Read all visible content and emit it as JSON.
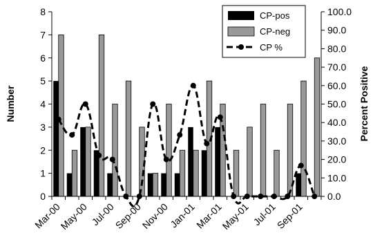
{
  "chart_data": {
    "type": "bar",
    "title": "",
    "ylabel": "Number",
    "y2label": "Percent Positive",
    "ylim": [
      0,
      8
    ],
    "y2lim": [
      0,
      100
    ],
    "yticks": [
      "0",
      "1",
      "2",
      "3",
      "4",
      "5",
      "6",
      "7",
      "8"
    ],
    "y2ticks": [
      "0.0",
      "10.0",
      "20.0",
      "30.0",
      "40.0",
      "50.0",
      "60.0",
      "70.0",
      "80.0",
      "90.0",
      "100.0"
    ],
    "x_tick_labels": [
      "Mar-00",
      "May-00",
      "Jul-00",
      "Sep-00",
      "Nov-00",
      "Jan-01",
      "Mar-01",
      "May-01",
      "Jul-01",
      "Sep-01"
    ],
    "months": [
      "Mar-00",
      "Apr-00",
      "May-00",
      "Jun-00",
      "Jul-00",
      "Aug-00",
      "Sep-00",
      "Oct-00",
      "Nov-00",
      "Dec-00",
      "Jan-01",
      "Feb-01",
      "Mar-01",
      "Apr-01",
      "May-01",
      "Jun-01",
      "Jul-01",
      "Aug-01",
      "Sep-01",
      "Oct-01"
    ],
    "legend_position": "top-right",
    "series": [
      {
        "name": "CP-pos",
        "kind": "bar",
        "axis": "left",
        "color": "#000000",
        "values": [
          5,
          1,
          3,
          2,
          1,
          0,
          0,
          1,
          1,
          1,
          3,
          2,
          3,
          0,
          0,
          0,
          0,
          0,
          1,
          0
        ]
      },
      {
        "name": "CP-neg",
        "kind": "bar",
        "axis": "left",
        "color": "#999999",
        "values": [
          7,
          2,
          3,
          7,
          4,
          5,
          3,
          1,
          4,
          2,
          2,
          5,
          4,
          2,
          3,
          4,
          2,
          4,
          5,
          6
        ]
      },
      {
        "name": "CP %",
        "kind": "line",
        "axis": "right",
        "color": "#000000",
        "dashed": true,
        "values": [
          41.7,
          33.3,
          50.0,
          22.2,
          20.0,
          0.0,
          0.0,
          50.0,
          20.0,
          33.3,
          60.0,
          28.6,
          42.9,
          0.0,
          0.0,
          0.0,
          0.0,
          0.0,
          16.7,
          0.0
        ]
      }
    ]
  }
}
